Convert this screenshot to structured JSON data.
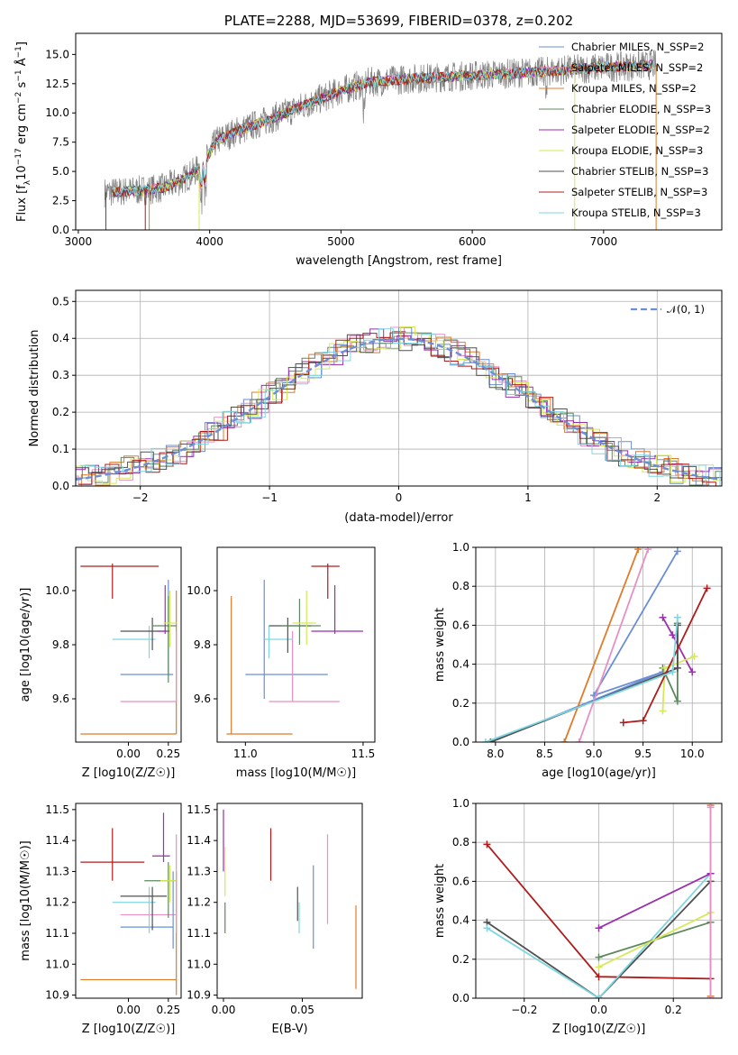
{
  "colors": {
    "chabrier_miles": "#6a8fd6",
    "salpeter_miles": "#e88fc4",
    "kroupa_miles": "#e07b2a",
    "chabrier_elodie": "#5c8a5c",
    "salpeter_elodie": "#9b2fae",
    "kroupa_elodie": "#d6e85a",
    "chabrier_stelib": "#505050",
    "salpeter_stelib": "#b01c1c",
    "kroupa_stelib": "#7fd6e0",
    "data": "#808080"
  },
  "chart_data": [
    {
      "id": "spectrum",
      "type": "line",
      "title": "PLATE=2288, MJD=53699, FIBERID=0378, z=0.202",
      "xlabel": "wavelength [Angstrom, rest frame]",
      "ylabel": "Flux [f_λ 10^-17 erg cm^-2 s^-1 A^-1]",
      "xlim": [
        2980,
        7900
      ],
      "ylim": [
        0,
        16.8
      ],
      "xticks": [
        3000,
        4000,
        5000,
        6000,
        7000
      ],
      "yticks": [
        0.0,
        2.5,
        5.0,
        7.5,
        10.0,
        12.5,
        15.0
      ],
      "xtick_labels": [
        "3000",
        "4000",
        "5000",
        "6000",
        "7000"
      ],
      "ytick_labels": [
        "0.0",
        "2.5",
        "5.0",
        "7.5",
        "10.0",
        "12.5",
        "15.0"
      ],
      "legend_position": "right",
      "legend": [
        "Chabrier MILES, N_SSP=2",
        "Salpeter MILES, N_SSP=2",
        "Kroupa MILES, N_SSP=2",
        "Chabrier ELODIE, N_SSP=3",
        "Salpeter ELODIE, N_SSP=2",
        "Kroupa ELODIE, N_SSP=3",
        "Chabrier STELIB, N_SSP=3",
        "Salpeter STELIB, N_SSP=3",
        "Kroupa STELIB, N_SSP=3"
      ],
      "continuum": [
        [
          3200,
          3.2
        ],
        [
          3500,
          3.4
        ],
        [
          3650,
          3.6
        ],
        [
          3800,
          4.3
        ],
        [
          3950,
          5.5
        ],
        [
          4050,
          7.6
        ],
        [
          4200,
          8.4
        ],
        [
          4400,
          9.2
        ],
        [
          4600,
          10.1
        ],
        [
          4800,
          11.0
        ],
        [
          5000,
          11.9
        ],
        [
          5200,
          12.6
        ],
        [
          5500,
          12.9
        ],
        [
          6000,
          13.2
        ],
        [
          6500,
          13.5
        ],
        [
          7000,
          13.9
        ],
        [
          7400,
          14.1
        ]
      ]
    },
    {
      "id": "residuals",
      "type": "line",
      "xlabel": "(data-model)/error",
      "ylabel": "Normed distribution",
      "xlim": [
        -2.5,
        2.5
      ],
      "ylim": [
        0,
        0.53
      ],
      "xticks": [
        -2,
        -1,
        0,
        1,
        2
      ],
      "xtick_labels": [
        "−2",
        "−1",
        "0",
        "1",
        "2"
      ],
      "yticks": [
        0.0,
        0.1,
        0.2,
        0.3,
        0.4,
        0.5
      ],
      "ytick_labels": [
        "0.0",
        "0.1",
        "0.2",
        "0.3",
        "0.4",
        "0.5"
      ],
      "grid": true,
      "legend": [
        "𝒩(0, 1)"
      ],
      "legend_position": "top-right"
    },
    {
      "id": "z-age",
      "type": "scatter",
      "xlabel": "Z [log10(Z/Z☉)]",
      "ylabel": "age [log10(age/yr)]",
      "xlim": [
        -0.33,
        0.33
      ],
      "ylim": [
        9.44,
        10.16
      ],
      "xticks": [
        0.0,
        0.25
      ],
      "xtick_labels": [
        "0.00",
        "0.25"
      ],
      "yticks": [
        9.6,
        9.8,
        10.0
      ],
      "ytick_labels": [
        "9.6",
        "9.8",
        "10.0"
      ]
    },
    {
      "id": "mass-age",
      "type": "scatter",
      "xlabel": "mass [log10(M/M☉)]",
      "xlim": [
        10.88,
        11.55
      ],
      "ylim": [
        9.44,
        10.16
      ],
      "xticks": [
        11.0,
        11.5
      ],
      "xtick_labels": [
        "11.0",
        "11.5"
      ],
      "yticks": [
        9.6,
        9.8,
        10.0
      ],
      "ytick_labels": [
        "9.6",
        "9.8",
        "10.0"
      ]
    },
    {
      "id": "age-weight",
      "type": "line",
      "xlabel": "age [log10(age/yr)]",
      "ylabel": "mass weight",
      "xlim": [
        7.8,
        10.3
      ],
      "ylim": [
        0,
        1
      ],
      "xticks": [
        8.0,
        8.5,
        9.0,
        9.5,
        10.0
      ],
      "xtick_labels": [
        "8.0",
        "8.5",
        "9.0",
        "9.5",
        "10.0"
      ],
      "yticks": [
        0.0,
        0.2,
        0.4,
        0.6,
        0.8,
        1.0
      ],
      "ytick_labels": [
        "0.0",
        "0.2",
        "0.4",
        "0.6",
        "0.8",
        "1.0"
      ],
      "grid": true,
      "series": [
        {
          "key": "chabrier_miles",
          "points": [
            [
              7.95,
              0.0
            ],
            [
              9.7,
              0.36
            ],
            [
              9.0,
              0.24
            ],
            [
              9.85,
              0.98
            ]
          ]
        },
        {
          "key": "salpeter_miles",
          "points": [
            [
              8.85,
              0.0
            ],
            [
              9.55,
              0.99
            ]
          ]
        },
        {
          "key": "kroupa_miles",
          "points": [
            [
              8.7,
              0.0
            ],
            [
              9.45,
              0.99
            ]
          ]
        },
        {
          "key": "chabrier_elodie",
          "points": [
            [
              9.7,
              0.38
            ],
            [
              9.85,
              0.21
            ],
            [
              9.85,
              0.61
            ]
          ]
        },
        {
          "key": "salpeter_elodie",
          "points": [
            [
              9.7,
              0.64
            ],
            [
              9.8,
              0.55
            ],
            [
              10.0,
              0.36
            ]
          ]
        },
        {
          "key": "kroupa_elodie",
          "points": [
            [
              9.7,
              0.16
            ],
            [
              9.72,
              0.38
            ],
            [
              10.02,
              0.44
            ]
          ]
        },
        {
          "key": "chabrier_stelib",
          "points": [
            [
              7.95,
              0.0
            ],
            [
              9.85,
              0.38
            ],
            [
              9.85,
              0.6
            ]
          ]
        },
        {
          "key": "salpeter_stelib",
          "points": [
            [
              9.3,
              0.1
            ],
            [
              9.5,
              0.11
            ],
            [
              10.15,
              0.79
            ]
          ]
        },
        {
          "key": "kroupa_stelib",
          "points": [
            [
              7.9,
              0.0
            ],
            [
              9.8,
              0.36
            ],
            [
              9.85,
              0.64
            ]
          ]
        }
      ]
    },
    {
      "id": "z-mass",
      "type": "scatter",
      "xlabel": "Z [log10(Z/Z☉)]",
      "ylabel": "mass [log10(M/M☉)]",
      "xlim": [
        -0.33,
        0.33
      ],
      "ylim": [
        10.89,
        11.52
      ],
      "xticks": [
        0.0,
        0.25
      ],
      "xtick_labels": [
        "0.00",
        "0.25"
      ],
      "yticks": [
        10.9,
        11.0,
        11.1,
        11.2,
        11.3,
        11.4,
        11.5
      ],
      "ytick_labels": [
        "10.9",
        "11.0",
        "11.1",
        "11.2",
        "11.3",
        "11.4",
        "11.5"
      ]
    },
    {
      "id": "ebv-mass",
      "type": "scatter",
      "xlabel": "E(B-V)",
      "xlim": [
        -0.004,
        0.088
      ],
      "ylim": [
        10.89,
        11.52
      ],
      "xticks": [
        0.0,
        0.05
      ],
      "xtick_labels": [
        "0.00",
        "0.05"
      ],
      "yticks": [
        10.9,
        11.0,
        11.1,
        11.2,
        11.3,
        11.4,
        11.5
      ],
      "ytick_labels": [
        "10.9",
        "11.0",
        "11.1",
        "11.2",
        "11.3",
        "11.4",
        "11.5"
      ]
    },
    {
      "id": "z-weight",
      "type": "line",
      "xlabel": "Z [log10(Z/Z☉)]",
      "ylabel": "mass weight",
      "xlim": [
        -0.33,
        0.33
      ],
      "ylim": [
        0,
        1
      ],
      "xticks": [
        -0.2,
        0.0,
        0.2
      ],
      "xtick_labels": [
        "−0.2",
        "0.0",
        "0.2"
      ],
      "yticks": [
        0.0,
        0.2,
        0.4,
        0.6,
        0.8,
        1.0
      ],
      "ytick_labels": [
        "0.0",
        "0.2",
        "0.4",
        "0.6",
        "0.8",
        "1.0"
      ],
      "grid": true,
      "series": [
        {
          "key": "salpeter_stelib",
          "points": [
            [
              -0.3,
              0.79
            ],
            [
              0.0,
              0.11
            ],
            [
              0.3,
              0.1
            ]
          ]
        },
        {
          "key": "chabrier_stelib",
          "points": [
            [
              -0.3,
              0.39
            ],
            [
              0.0,
              0.0
            ],
            [
              0.3,
              0.6
            ]
          ]
        },
        {
          "key": "kroupa_stelib",
          "points": [
            [
              -0.3,
              0.36
            ],
            [
              0.0,
              0.0
            ],
            [
              0.3,
              0.64
            ]
          ]
        },
        {
          "key": "salpeter_elodie",
          "points": [
            [
              0.0,
              0.36
            ],
            [
              0.3,
              0.64
            ]
          ]
        },
        {
          "key": "chabrier_elodie",
          "points": [
            [
              0.0,
              0.21
            ],
            [
              0.3,
              0.39
            ]
          ]
        },
        {
          "key": "kroupa_elodie",
          "points": [
            [
              0.0,
              0.16
            ],
            [
              0.3,
              0.44
            ]
          ]
        },
        {
          "key": "kroupa_miles",
          "points": [
            [
              0.3,
              0.01
            ],
            [
              0.3,
              0.99
            ]
          ]
        },
        {
          "key": "salpeter_miles",
          "points": [
            [
              0.3,
              0.0
            ],
            [
              0.3,
              0.98
            ]
          ]
        }
      ]
    }
  ]
}
